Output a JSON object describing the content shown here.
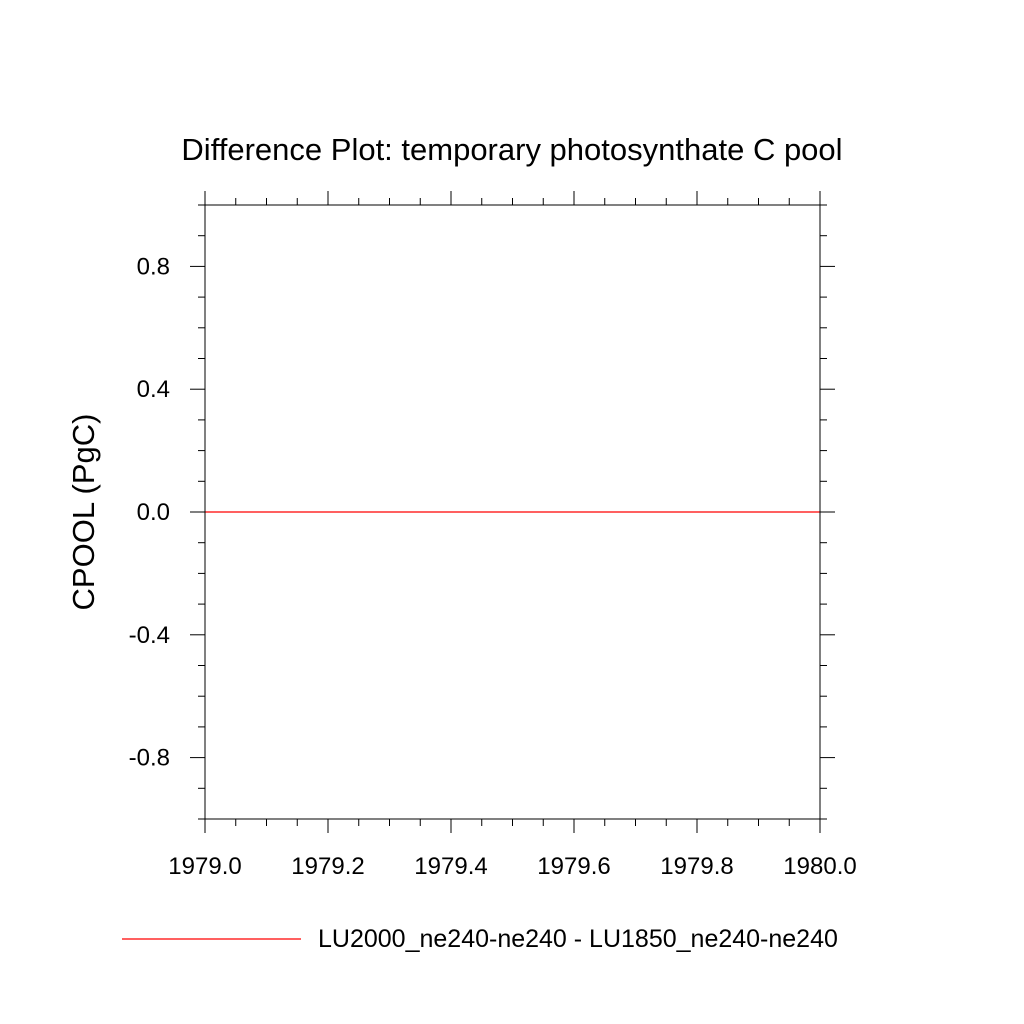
{
  "chart_data": {
    "type": "line",
    "title": "Difference Plot: temporary photosynthate C pool",
    "xlabel": "",
    "ylabel": "CPOOL  (PgC)",
    "xlim": [
      1979.0,
      1980.0
    ],
    "ylim": [
      -1.0,
      1.0
    ],
    "x_ticks": [
      1979.0,
      1979.2,
      1979.4,
      1979.6,
      1979.8,
      1980.0
    ],
    "x_tick_labels": [
      "1979.0",
      "1979.2",
      "1979.4",
      "1979.6",
      "1979.8",
      "1980.0"
    ],
    "y_ticks": [
      -0.8,
      -0.4,
      0.0,
      0.4,
      0.8
    ],
    "y_tick_labels": [
      "-0.8",
      "-0.4",
      "0.0",
      "0.4",
      "0.8"
    ],
    "grid": false,
    "legend_position": "bottom",
    "series": [
      {
        "name": "LU2000_ne240-ne240 - LU1850_ne240-ne240",
        "color": "#ff0000",
        "x": [
          1979.0,
          1980.0
        ],
        "y": [
          0.0,
          0.0
        ]
      }
    ]
  }
}
